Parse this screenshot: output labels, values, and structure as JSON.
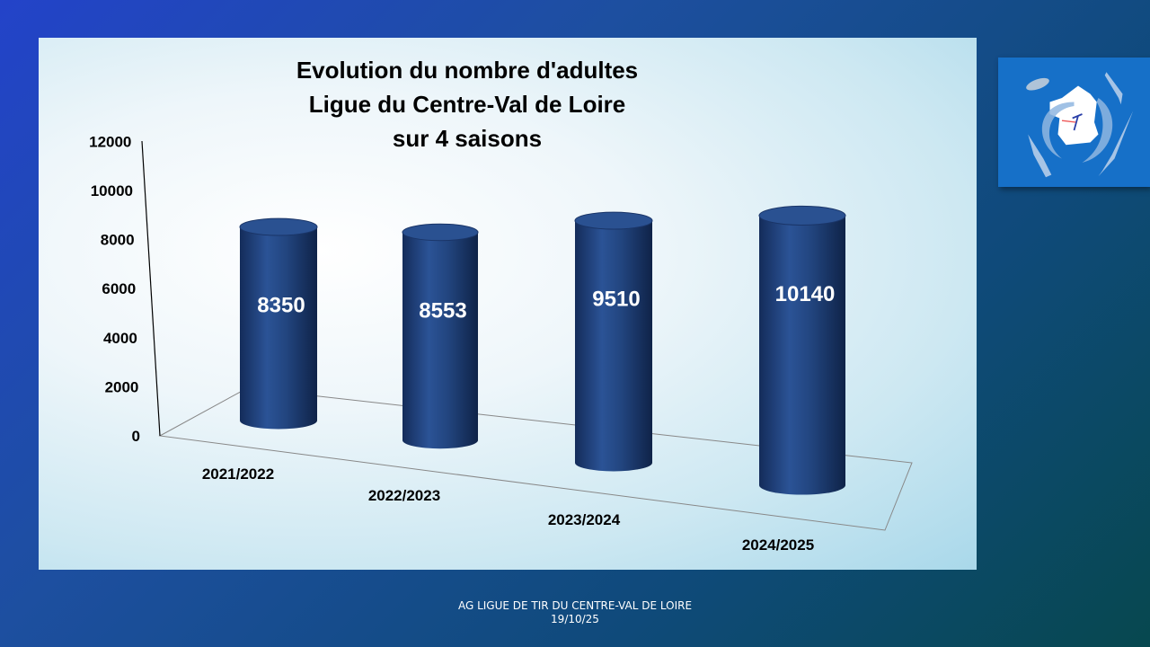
{
  "chart_data": {
    "type": "bar",
    "title_lines": [
      "Evolution du nombre d'adultes",
      "Ligue du Centre-Val de Loire",
      "sur 4 saisons"
    ],
    "categories": [
      "2021/2022",
      "2022/2023",
      "2023/2024",
      "2024/2025"
    ],
    "values": [
      8350,
      8553,
      9510,
      10140
    ],
    "data_labels": [
      "8350",
      "8553",
      "9510",
      "10140"
    ],
    "yticks": [
      "0",
      "2000",
      "4000",
      "6000",
      "8000",
      "10000",
      "12000"
    ],
    "ylim": [
      0,
      12000
    ],
    "xlabel": "",
    "ylabel": "",
    "bar_color": "#1f3f7a",
    "style": "3d-cylinder"
  },
  "footer": {
    "line1": "AG LIGUE DE TIR DU CENTRE-VAL DE LOIRE",
    "line2": "19/10/25"
  },
  "logo": {
    "name": "ligue-logo"
  }
}
